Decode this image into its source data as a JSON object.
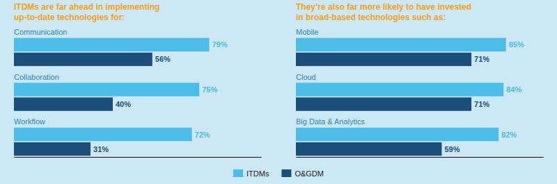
{
  "chart_data": [
    {
      "type": "bar",
      "orientation": "horizontal",
      "title": "ITDMs are far ahead in implementing",
      "subtitle": "up-to-date technologies for:",
      "categories": [
        "Communication",
        "Collaboration",
        "Workflow"
      ],
      "series": [
        {
          "name": "ITDMs",
          "color": "#4bbde8",
          "values": [
            79,
            75,
            72
          ],
          "value_labels": [
            "79%",
            "75%",
            "72%"
          ]
        },
        {
          "name": "O&GDM",
          "color": "#1b4f7a",
          "values": [
            56,
            40,
            31
          ],
          "value_labels": [
            "56%",
            "40%",
            "31%"
          ]
        }
      ],
      "xlim": [
        0,
        100
      ],
      "grid": false,
      "tick_labels": false,
      "data_labels": true,
      "legend": "bottom"
    },
    {
      "type": "bar",
      "orientation": "horizontal",
      "title": "They’re also far more likely to have invested",
      "subtitle": "in broad-based technologies such as:",
      "categories": [
        "Mobile",
        "Cloud",
        "Big Data & Analytics"
      ],
      "series": [
        {
          "color": "#4bbde8",
          "values": [
            85,
            84,
            82
          ],
          "value_labels": [
            "85%",
            "84%",
            "82%"
          ]
        },
        {
          "color": "#1b4f7a",
          "values": [
            71,
            71,
            59
          ],
          "value_labels": [
            "71%",
            "71%",
            "59%"
          ]
        }
      ],
      "xlim": [
        0,
        100
      ],
      "grid": false,
      "tick_labels": false,
      "data_labels": true
    }
  ]
}
